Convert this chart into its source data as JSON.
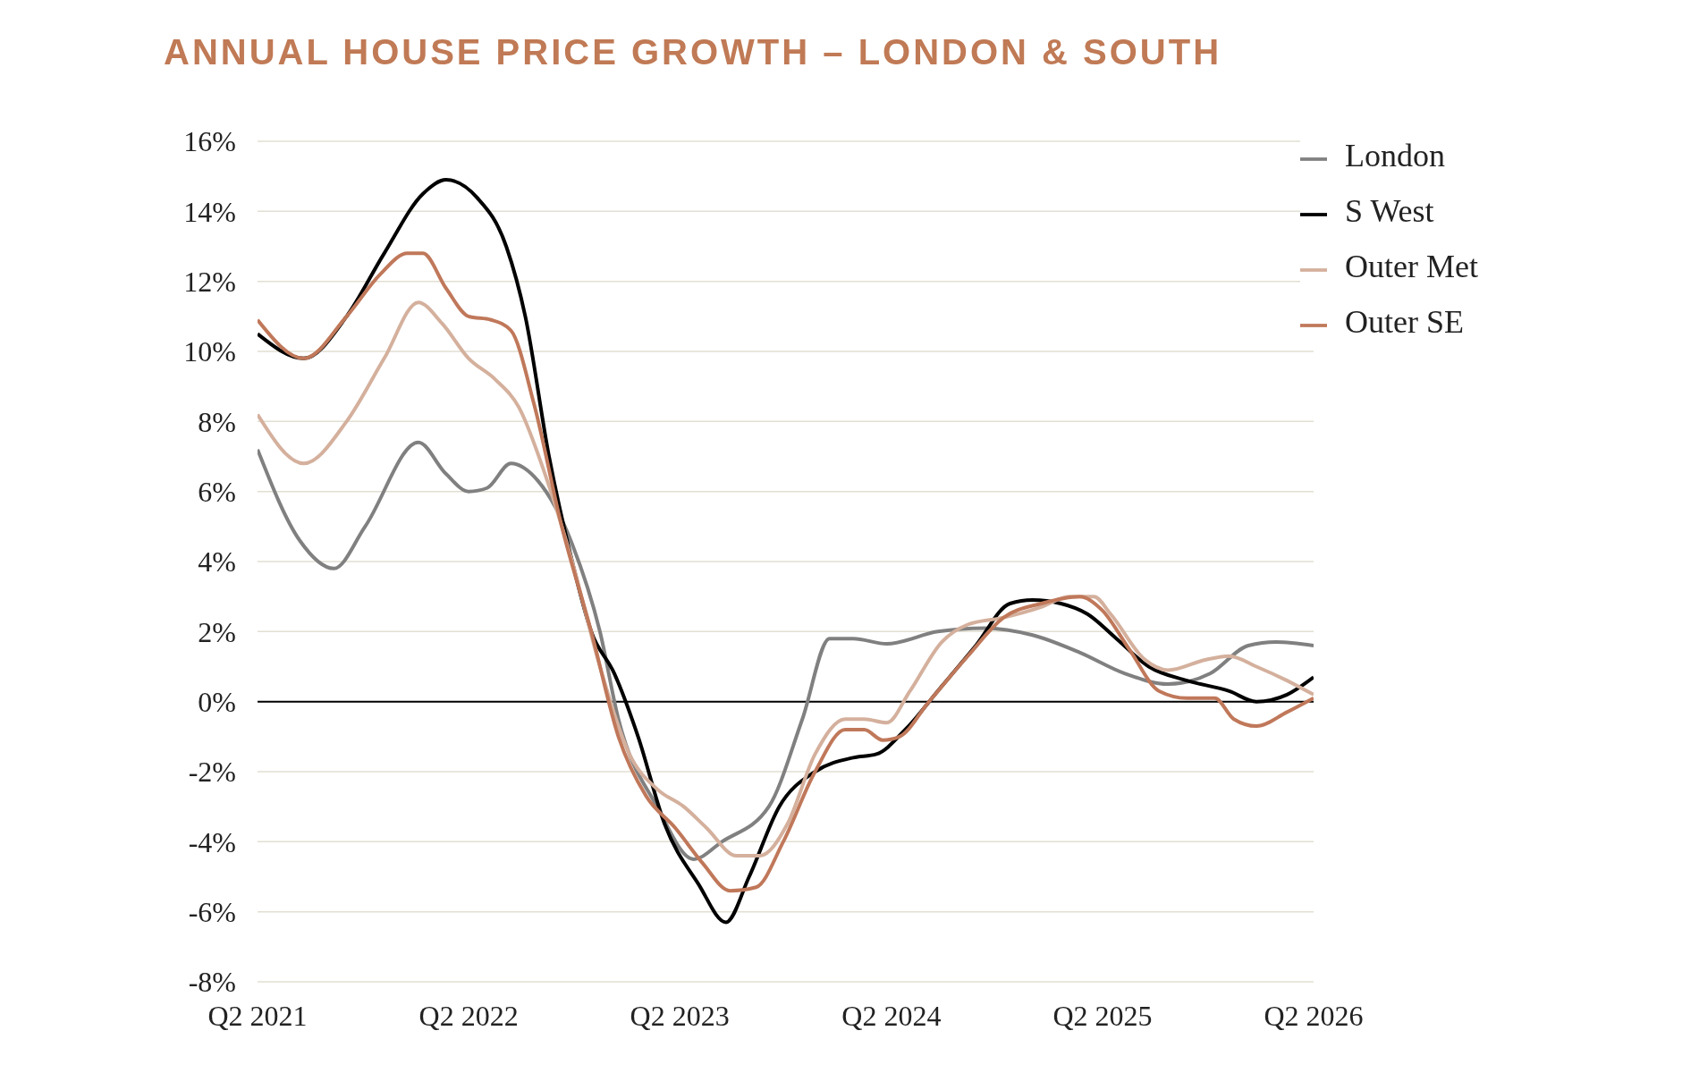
{
  "chart_data": {
    "type": "line",
    "title": "ANNUAL HOUSE PRICE GROWTH – LONDON & SOUTH",
    "xlim": [
      "2021-04-01",
      "2026-04-01"
    ],
    "xticks": [
      {
        "value": "2021-04-01",
        "label": "Q2 2021"
      },
      {
        "value": "2022-04-01",
        "label": "Q2 2022"
      },
      {
        "value": "2023-04-01",
        "label": "Q2 2023"
      },
      {
        "value": "2024-04-01",
        "label": "Q2 2024"
      },
      {
        "value": "2025-04-01",
        "label": "Q2 2025"
      },
      {
        "value": "2026-04-01",
        "label": "Q2 2026"
      }
    ],
    "ylim": [
      -8,
      16
    ],
    "yticks": [
      {
        "value": -8,
        "label": "-8%"
      },
      {
        "value": -6,
        "label": "-6%"
      },
      {
        "value": -4,
        "label": "-4%"
      },
      {
        "value": -2,
        "label": "-2%"
      },
      {
        "value": 0,
        "label": "0%"
      },
      {
        "value": 2,
        "label": "2%"
      },
      {
        "value": 4,
        "label": "4%"
      },
      {
        "value": 6,
        "label": "6%"
      },
      {
        "value": 8,
        "label": "8%"
      },
      {
        "value": 10,
        "label": "10%"
      },
      {
        "value": 12,
        "label": "12%"
      },
      {
        "value": 14,
        "label": "14%"
      },
      {
        "value": 16,
        "label": "16%"
      }
    ],
    "grid": "y",
    "legend": "top right",
    "marker": "none",
    "line_style": "solid",
    "ref_lines": [
      {
        "axis": "y",
        "value": 0,
        "color": "#000000"
      }
    ],
    "series": [
      {
        "name": "London",
        "color": "#808080",
        "x": [
          "2021-04-01",
          "2021-06-13",
          "2021-08-11",
          "2021-10-04",
          "2022-01-04",
          "2022-02-21",
          "2022-04-01",
          "2022-05-03",
          "2022-06-13",
          "2022-07-30",
          "2022-09-27",
          "2022-11-14",
          "2022-12-16",
          "2023-02-21",
          "2023-04-25",
          "2023-06-13",
          "2023-09-02",
          "2023-10-30",
          "2023-12-16",
          "2024-01-26",
          "2024-03-24",
          "2024-06-20",
          "2024-09-09",
          "2024-12-01",
          "2025-02-21",
          "2025-05-10",
          "2025-07-23",
          "2025-10-04",
          "2025-12-09",
          "2026-01-26",
          "2026-04-01"
        ],
        "values": [
          7.2,
          4.6,
          3.8,
          5.0,
          7.4,
          6.5,
          6.0,
          6.1,
          6.8,
          6.3,
          4.5,
          2.0,
          -0.5,
          -3.0,
          -4.5,
          -4.0,
          -3.0,
          -0.5,
          1.8,
          1.8,
          1.65,
          2.0,
          2.1,
          1.9,
          1.4,
          0.8,
          0.5,
          0.8,
          1.6,
          1.7,
          1.6
        ]
      },
      {
        "name": "S West",
        "color": "#000000",
        "x": [
          "2021-04-01",
          "2021-06-20",
          "2021-09-02",
          "2021-11-06",
          "2022-01-12",
          "2022-02-21",
          "2022-04-15",
          "2022-06-05",
          "2022-07-08",
          "2022-08-18",
          "2022-09-27",
          "2022-10-30",
          "2022-12-09",
          "2023-01-19",
          "2023-03-06",
          "2023-05-03",
          "2023-06-20",
          "2023-07-30",
          "2023-09-20",
          "2023-11-21",
          "2024-01-26",
          "2024-03-06",
          "2024-04-25",
          "2024-06-20",
          "2024-08-25",
          "2024-10-23",
          "2024-12-01",
          "2025-01-19",
          "2025-03-06",
          "2025-04-25",
          "2025-06-20",
          "2025-08-25",
          "2025-11-06",
          "2025-12-23",
          "2026-02-14",
          "2026-04-01"
        ],
        "values": [
          10.5,
          9.8,
          11.0,
          12.8,
          14.5,
          14.9,
          14.4,
          13.0,
          11.0,
          7.0,
          4.0,
          2.0,
          0.8,
          -1.0,
          -3.5,
          -5.2,
          -6.3,
          -5.0,
          -3.0,
          -2.0,
          -1.6,
          -1.5,
          -0.8,
          0.3,
          1.6,
          2.8,
          2.9,
          2.8,
          2.5,
          1.8,
          1.0,
          0.6,
          0.3,
          0.0,
          0.2,
          0.7
        ]
      },
      {
        "name": "Outer Met",
        "color": "#d4b09d",
        "x": [
          "2021-04-01",
          "2021-06-20",
          "2021-09-02",
          "2021-11-06",
          "2022-01-04",
          "2022-02-14",
          "2022-04-01",
          "2022-05-17",
          "2022-06-27",
          "2022-08-11",
          "2022-09-27",
          "2022-11-14",
          "2023-01-04",
          "2023-02-21",
          "2023-04-08",
          "2023-05-17",
          "2023-07-08",
          "2023-08-18",
          "2023-10-04",
          "2023-11-21",
          "2024-01-12",
          "2024-02-14",
          "2024-03-24",
          "2024-05-03",
          "2024-06-27",
          "2024-08-11",
          "2024-10-12",
          "2024-12-16",
          "2025-02-02",
          "2025-03-17",
          "2025-04-15",
          "2025-06-13",
          "2025-07-23",
          "2025-09-27",
          "2025-11-06",
          "2025-12-23",
          "2026-02-14",
          "2026-04-01"
        ],
        "values": [
          8.2,
          6.8,
          8.0,
          9.8,
          11.4,
          10.8,
          9.8,
          9.2,
          8.4,
          6.5,
          4.0,
          1.0,
          -1.5,
          -2.5,
          -3.0,
          -3.6,
          -4.4,
          -4.4,
          -3.5,
          -1.5,
          -0.5,
          -0.5,
          -0.6,
          0.3,
          1.7,
          2.2,
          2.4,
          2.7,
          3.0,
          3.0,
          2.5,
          1.2,
          0.9,
          1.2,
          1.3,
          1.0,
          0.6,
          0.2
        ]
      },
      {
        "name": "Outer SE",
        "color": "#c0785a",
        "x": [
          "2021-04-01",
          "2021-06-20",
          "2021-09-02",
          "2021-10-30",
          "2021-12-16",
          "2022-01-12",
          "2022-02-21",
          "2022-04-01",
          "2022-05-10",
          "2022-06-13",
          "2022-07-23",
          "2022-09-09",
          "2022-10-30",
          "2022-12-16",
          "2023-02-02",
          "2023-03-24",
          "2023-05-10",
          "2023-06-27",
          "2023-08-11",
          "2023-09-27",
          "2023-11-21",
          "2024-01-12",
          "2024-02-14",
          "2024-03-17",
          "2024-04-15",
          "2024-06-05",
          "2024-08-11",
          "2024-10-12",
          "2024-12-16",
          "2025-02-21",
          "2025-04-01",
          "2025-05-17",
          "2025-07-08",
          "2025-08-25",
          "2025-10-12",
          "2025-11-14",
          "2025-12-23",
          "2026-02-14",
          "2026-04-01"
        ],
        "values": [
          10.9,
          9.8,
          11.0,
          12.2,
          12.8,
          12.8,
          11.8,
          11.0,
          10.9,
          10.6,
          8.5,
          5.0,
          2.0,
          -1.0,
          -2.7,
          -3.6,
          -4.6,
          -5.4,
          -5.3,
          -4.0,
          -2.0,
          -0.8,
          -0.8,
          -1.1,
          -1.0,
          0.0,
          1.3,
          2.4,
          2.8,
          3.0,
          2.6,
          1.5,
          0.3,
          0.1,
          0.1,
          -0.5,
          -0.7,
          -0.3,
          0.1
        ]
      }
    ]
  }
}
